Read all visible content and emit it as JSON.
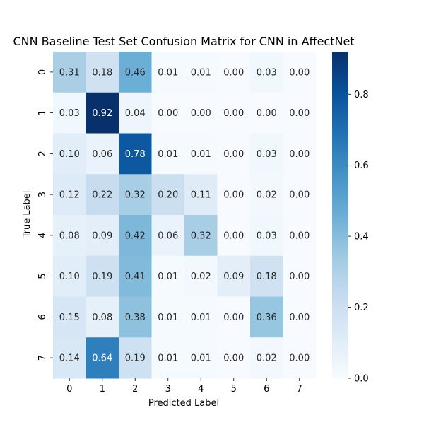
{
  "chart_data": {
    "type": "heatmap",
    "title": "CNN Baseline Test Set Confusion Matrix for CNN in AffectNet",
    "xlabel": "Predicted Label",
    "ylabel": "True Label",
    "x_categories": [
      "0",
      "1",
      "2",
      "3",
      "4",
      "5",
      "6",
      "7"
    ],
    "y_categories": [
      "0",
      "1",
      "2",
      "3",
      "4",
      "5",
      "6",
      "7"
    ],
    "values": [
      [
        0.31,
        0.18,
        0.46,
        0.01,
        0.01,
        0.0,
        0.03,
        0.0
      ],
      [
        0.03,
        0.92,
        0.04,
        0.0,
        0.0,
        0.0,
        0.0,
        0.0
      ],
      [
        0.1,
        0.06,
        0.78,
        0.01,
        0.01,
        0.0,
        0.03,
        0.0
      ],
      [
        0.12,
        0.22,
        0.32,
        0.2,
        0.11,
        0.0,
        0.02,
        0.0
      ],
      [
        0.08,
        0.09,
        0.42,
        0.06,
        0.32,
        0.0,
        0.03,
        0.0
      ],
      [
        0.1,
        0.19,
        0.41,
        0.01,
        0.02,
        0.09,
        0.18,
        0.0
      ],
      [
        0.15,
        0.08,
        0.38,
        0.01,
        0.01,
        0.0,
        0.36,
        0.0
      ],
      [
        0.14,
        0.64,
        0.19,
        0.01,
        0.01,
        0.0,
        0.02,
        0.0
      ]
    ],
    "value_format": "0.00",
    "colormap": "Blues",
    "colorbar": {
      "range": [
        0.0,
        0.92
      ],
      "ticks": [
        0.0,
        0.2,
        0.4,
        0.6,
        0.8
      ],
      "tick_labels": [
        "0.0",
        "0.2",
        "0.4",
        "0.6",
        "0.8"
      ]
    },
    "grid": false,
    "legend": "colorbar-right"
  }
}
